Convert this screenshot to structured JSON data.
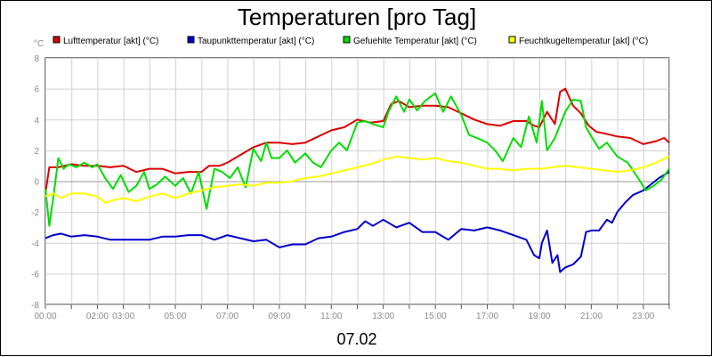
{
  "chart_data": {
    "type": "line",
    "title": "Temperaturen [pro Tag]",
    "ylabel": "°C",
    "xlabel": "07.02",
    "xlim": [
      0,
      24
    ],
    "ylim": [
      -8,
      8
    ],
    "grid": true,
    "legend_position": "top",
    "y_ticks": [
      -8,
      -6,
      -4,
      -2,
      0,
      2,
      4,
      6,
      8
    ],
    "x_ticks": [
      {
        "h": 0,
        "label": "00:00"
      },
      {
        "h": 2,
        "label": "02:00"
      },
      {
        "h": 3,
        "label": "03:00"
      },
      {
        "h": 5,
        "label": "05:00"
      },
      {
        "h": 7,
        "label": "07:00"
      },
      {
        "h": 9,
        "label": "09:00"
      },
      {
        "h": 11,
        "label": "11:00"
      },
      {
        "h": 13,
        "label": "13:00"
      },
      {
        "h": 15,
        "label": "15:00"
      },
      {
        "h": 17,
        "label": "17:00"
      },
      {
        "h": 19,
        "label": "19:00"
      },
      {
        "h": 21,
        "label": "21:00"
      },
      {
        "h": 23,
        "label": "23:00"
      }
    ],
    "series": [
      {
        "name": "Lufttemperatur [akt] (°C)",
        "color": "#dd0000",
        "points": [
          [
            0,
            -0.8
          ],
          [
            0.15,
            0.9
          ],
          [
            0.5,
            0.9
          ],
          [
            1,
            1.1
          ],
          [
            1.5,
            1.0
          ],
          [
            2,
            1.0
          ],
          [
            2.5,
            0.9
          ],
          [
            3,
            1.0
          ],
          [
            3.5,
            0.6
          ],
          [
            4,
            0.8
          ],
          [
            4.5,
            0.8
          ],
          [
            5,
            0.5
          ],
          [
            5.5,
            0.6
          ],
          [
            6,
            0.6
          ],
          [
            6.3,
            1.0
          ],
          [
            6.7,
            1.0
          ],
          [
            7,
            1.2
          ],
          [
            7.3,
            1.5
          ],
          [
            7.7,
            1.9
          ],
          [
            8,
            2.2
          ],
          [
            8.5,
            2.5
          ],
          [
            9,
            2.5
          ],
          [
            9.5,
            2.4
          ],
          [
            10,
            2.5
          ],
          [
            10.5,
            2.9
          ],
          [
            11,
            3.3
          ],
          [
            11.5,
            3.5
          ],
          [
            12,
            4.0
          ],
          [
            12.5,
            3.8
          ],
          [
            13,
            3.9
          ],
          [
            13.3,
            5.0
          ],
          [
            13.6,
            5.2
          ],
          [
            14,
            4.8
          ],
          [
            14.5,
            4.9
          ],
          [
            15,
            4.9
          ],
          [
            15.5,
            4.8
          ],
          [
            16,
            4.4
          ],
          [
            16.5,
            4.0
          ],
          [
            17,
            3.7
          ],
          [
            17.5,
            3.6
          ],
          [
            18,
            3.9
          ],
          [
            18.5,
            3.9
          ],
          [
            18.8,
            3.6
          ],
          [
            19,
            3.5
          ],
          [
            19.3,
            4.5
          ],
          [
            19.6,
            3.7
          ],
          [
            19.8,
            5.8
          ],
          [
            20,
            6.0
          ],
          [
            20.3,
            4.9
          ],
          [
            20.6,
            4.4
          ],
          [
            20.9,
            3.6
          ],
          [
            21.2,
            3.2
          ],
          [
            21.5,
            3.1
          ],
          [
            22,
            2.9
          ],
          [
            22.5,
            2.8
          ],
          [
            23,
            2.4
          ],
          [
            23.5,
            2.6
          ],
          [
            23.8,
            2.8
          ],
          [
            24,
            2.5
          ]
        ]
      },
      {
        "name": "Taupunkttemperatur [akt] (°C)",
        "color": "#0000cc",
        "points": [
          [
            0,
            -3.7
          ],
          [
            0.3,
            -3.5
          ],
          [
            0.6,
            -3.4
          ],
          [
            1,
            -3.6
          ],
          [
            1.5,
            -3.5
          ],
          [
            2,
            -3.6
          ],
          [
            2.5,
            -3.8
          ],
          [
            3,
            -3.8
          ],
          [
            3.5,
            -3.8
          ],
          [
            4,
            -3.8
          ],
          [
            4.5,
            -3.6
          ],
          [
            5,
            -3.6
          ],
          [
            5.5,
            -3.5
          ],
          [
            6,
            -3.5
          ],
          [
            6.5,
            -3.8
          ],
          [
            7,
            -3.5
          ],
          [
            7.5,
            -3.7
          ],
          [
            8,
            -3.9
          ],
          [
            8.5,
            -3.8
          ],
          [
            9,
            -4.3
          ],
          [
            9.5,
            -4.1
          ],
          [
            10,
            -4.1
          ],
          [
            10.5,
            -3.7
          ],
          [
            11,
            -3.6
          ],
          [
            11.5,
            -3.3
          ],
          [
            12,
            -3.1
          ],
          [
            12.3,
            -2.6
          ],
          [
            12.6,
            -2.9
          ],
          [
            13,
            -2.5
          ],
          [
            13.5,
            -3.0
          ],
          [
            14,
            -2.7
          ],
          [
            14.5,
            -3.3
          ],
          [
            15,
            -3.3
          ],
          [
            15.5,
            -3.8
          ],
          [
            16,
            -3.1
          ],
          [
            16.5,
            -3.2
          ],
          [
            17,
            -3.0
          ],
          [
            17.5,
            -3.2
          ],
          [
            18,
            -3.5
          ],
          [
            18.5,
            -3.8
          ],
          [
            18.8,
            -4.8
          ],
          [
            19,
            -5.0
          ],
          [
            19.1,
            -4.0
          ],
          [
            19.3,
            -3.2
          ],
          [
            19.5,
            -5.3
          ],
          [
            19.7,
            -4.8
          ],
          [
            19.8,
            -5.9
          ],
          [
            20,
            -5.6
          ],
          [
            20.3,
            -5.4
          ],
          [
            20.6,
            -4.9
          ],
          [
            20.8,
            -3.3
          ],
          [
            21,
            -3.2
          ],
          [
            21.3,
            -3.2
          ],
          [
            21.6,
            -2.5
          ],
          [
            21.8,
            -2.7
          ],
          [
            22,
            -2.0
          ],
          [
            22.3,
            -1.4
          ],
          [
            22.6,
            -0.9
          ],
          [
            23,
            -0.6
          ],
          [
            23.3,
            -0.2
          ],
          [
            23.6,
            0.2
          ],
          [
            24,
            0.6
          ]
        ]
      },
      {
        "name": "Gefuehlte Temperatur [akt] (°C)",
        "color": "#00dd00",
        "points": [
          [
            0,
            -0.5
          ],
          [
            0.15,
            -2.9
          ],
          [
            0.3,
            -1.1
          ],
          [
            0.5,
            1.5
          ],
          [
            0.7,
            0.8
          ],
          [
            0.9,
            1.1
          ],
          [
            1.2,
            0.9
          ],
          [
            1.5,
            1.2
          ],
          [
            1.8,
            0.9
          ],
          [
            2,
            1.1
          ],
          [
            2.3,
            0.2
          ],
          [
            2.6,
            -0.5
          ],
          [
            2.9,
            0.4
          ],
          [
            3.2,
            -0.7
          ],
          [
            3.5,
            -0.3
          ],
          [
            3.8,
            0.6
          ],
          [
            4,
            -0.5
          ],
          [
            4.3,
            -0.2
          ],
          [
            4.6,
            0.3
          ],
          [
            5,
            -0.3
          ],
          [
            5.3,
            0.2
          ],
          [
            5.6,
            -0.8
          ],
          [
            5.9,
            0.6
          ],
          [
            6.2,
            -1.8
          ],
          [
            6.5,
            0.8
          ],
          [
            6.8,
            0.6
          ],
          [
            7.1,
            0.2
          ],
          [
            7.4,
            0.9
          ],
          [
            7.7,
            -0.4
          ],
          [
            8,
            2.1
          ],
          [
            8.3,
            1.3
          ],
          [
            8.5,
            2.5
          ],
          [
            8.7,
            1.5
          ],
          [
            9,
            1.5
          ],
          [
            9.3,
            2.0
          ],
          [
            9.6,
            1.2
          ],
          [
            10,
            1.8
          ],
          [
            10.3,
            1.2
          ],
          [
            10.6,
            0.9
          ],
          [
            11,
            2.0
          ],
          [
            11.3,
            2.5
          ],
          [
            11.6,
            2.0
          ],
          [
            12,
            3.8
          ],
          [
            12.3,
            3.9
          ],
          [
            12.6,
            3.7
          ],
          [
            13,
            3.5
          ],
          [
            13.2,
            4.5
          ],
          [
            13.5,
            5.5
          ],
          [
            13.8,
            4.5
          ],
          [
            14,
            5.3
          ],
          [
            14.3,
            4.6
          ],
          [
            14.6,
            5.2
          ],
          [
            15,
            5.7
          ],
          [
            15.3,
            4.5
          ],
          [
            15.6,
            5.5
          ],
          [
            16,
            4.3
          ],
          [
            16.3,
            3.0
          ],
          [
            16.6,
            2.8
          ],
          [
            17,
            2.5
          ],
          [
            17.3,
            2.0
          ],
          [
            17.6,
            1.3
          ],
          [
            18,
            2.8
          ],
          [
            18.3,
            2.2
          ],
          [
            18.6,
            4.2
          ],
          [
            18.9,
            2.5
          ],
          [
            19.1,
            5.2
          ],
          [
            19.3,
            2.0
          ],
          [
            19.6,
            2.8
          ],
          [
            20,
            4.5
          ],
          [
            20.3,
            5.3
          ],
          [
            20.6,
            5.2
          ],
          [
            20.8,
            3.5
          ],
          [
            21,
            2.9
          ],
          [
            21.3,
            2.1
          ],
          [
            21.6,
            2.5
          ],
          [
            22,
            1.6
          ],
          [
            22.4,
            1.2
          ],
          [
            22.8,
            0.2
          ],
          [
            23.1,
            -0.6
          ],
          [
            23.4,
            -0.3
          ],
          [
            23.7,
            0.1
          ],
          [
            24,
            0.8
          ]
        ]
      },
      {
        "name": "Feuchtkugeltemperatur [akt] (°C)",
        "color": "#ffff00",
        "points": [
          [
            0,
            -1.0
          ],
          [
            0.3,
            -0.8
          ],
          [
            0.6,
            -1.1
          ],
          [
            1,
            -0.8
          ],
          [
            1.5,
            -0.8
          ],
          [
            2,
            -1.0
          ],
          [
            2.3,
            -1.4
          ],
          [
            2.7,
            -1.2
          ],
          [
            3,
            -1.1
          ],
          [
            3.5,
            -1.3
          ],
          [
            4,
            -1.0
          ],
          [
            4.5,
            -0.8
          ],
          [
            5,
            -1.1
          ],
          [
            5.5,
            -0.8
          ],
          [
            6,
            -0.6
          ],
          [
            6.5,
            -0.4
          ],
          [
            7,
            -0.3
          ],
          [
            7.5,
            -0.2
          ],
          [
            8,
            -0.3
          ],
          [
            8.5,
            -0.1
          ],
          [
            9,
            -0.1
          ],
          [
            9.5,
            0.0
          ],
          [
            10,
            0.2
          ],
          [
            10.5,
            0.3
          ],
          [
            11,
            0.5
          ],
          [
            11.5,
            0.7
          ],
          [
            12,
            0.9
          ],
          [
            12.5,
            1.1
          ],
          [
            13,
            1.4
          ],
          [
            13.5,
            1.6
          ],
          [
            14,
            1.5
          ],
          [
            14.5,
            1.4
          ],
          [
            15,
            1.5
          ],
          [
            15.5,
            1.3
          ],
          [
            16,
            1.2
          ],
          [
            16.5,
            1.0
          ],
          [
            17,
            0.8
          ],
          [
            17.5,
            0.8
          ],
          [
            18,
            0.7
          ],
          [
            18.5,
            0.8
          ],
          [
            19,
            0.8
          ],
          [
            19.5,
            0.9
          ],
          [
            20,
            1.0
          ],
          [
            20.5,
            0.9
          ],
          [
            21,
            0.8
          ],
          [
            21.5,
            0.7
          ],
          [
            22,
            0.6
          ],
          [
            22.5,
            0.7
          ],
          [
            23,
            0.9
          ],
          [
            23.5,
            1.2
          ],
          [
            24,
            1.6
          ]
        ]
      }
    ]
  }
}
